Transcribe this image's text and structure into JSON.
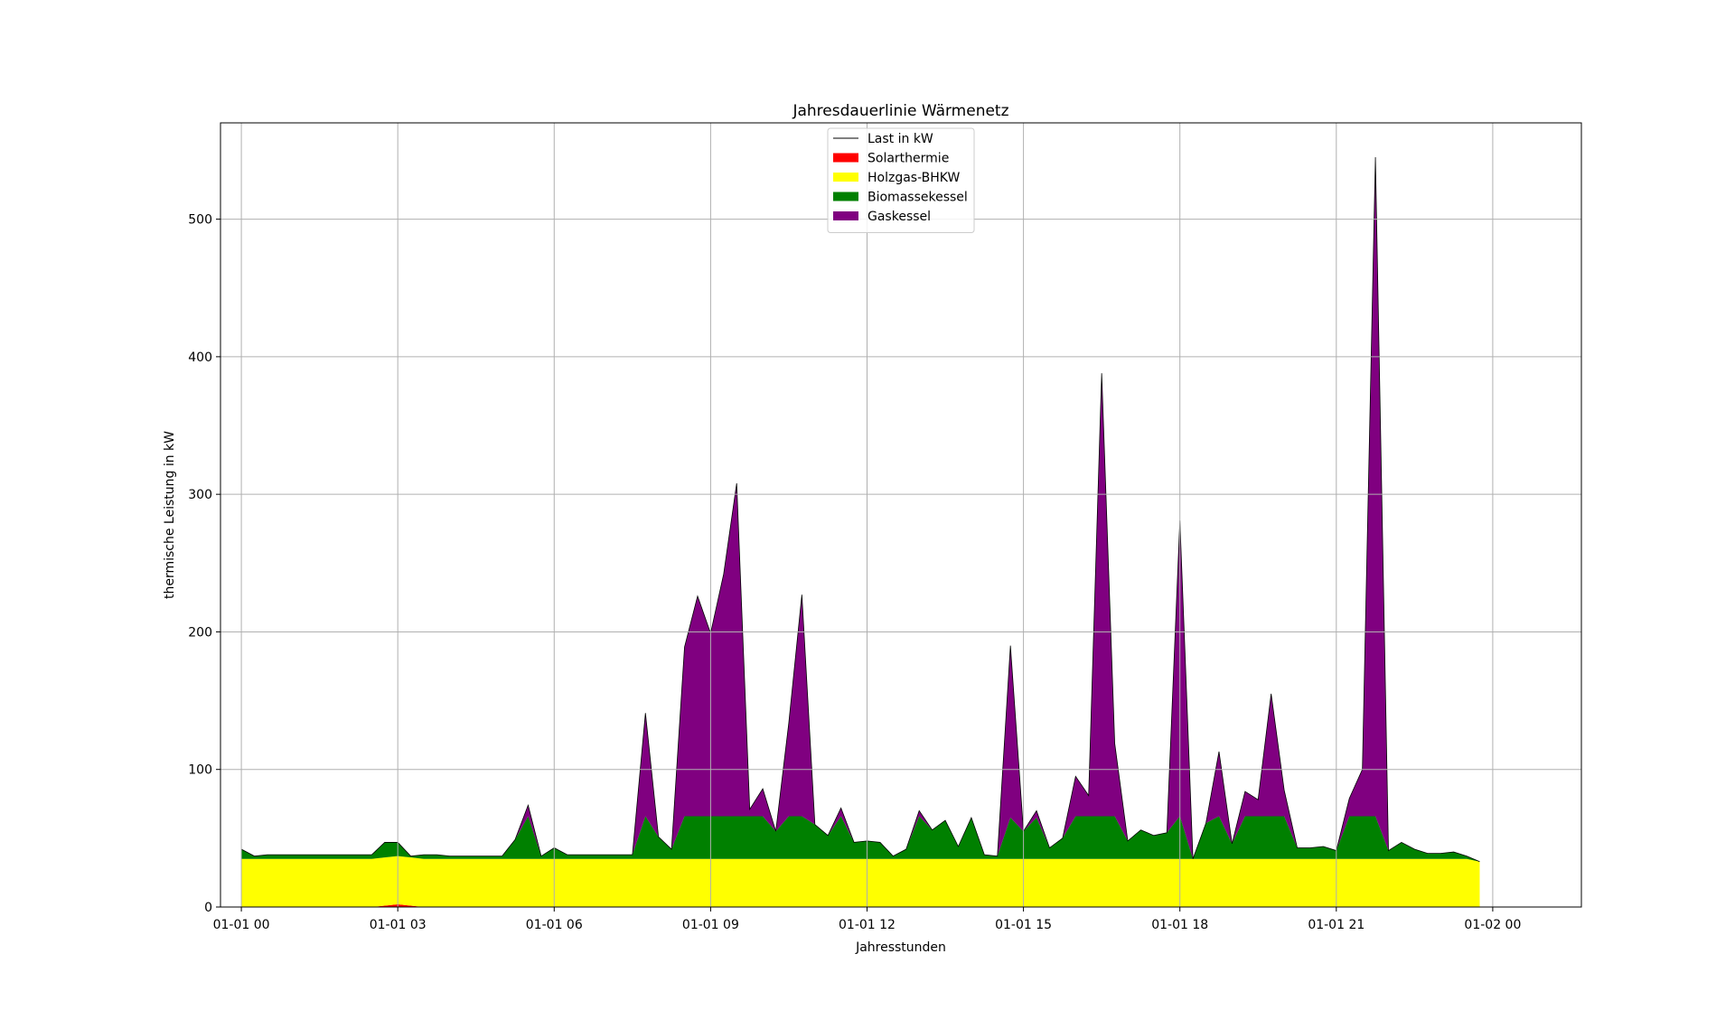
{
  "chart_data": {
    "type": "area",
    "stacked": true,
    "title": "Jahresdauerlinie Wärmenetz",
    "xlabel": "Jahresstunden",
    "ylabel": "thermische Leistung in kW",
    "x_unit": "hours",
    "xlim": [
      -0.4,
      25.7
    ],
    "ylim": [
      0,
      570
    ],
    "x_ticks": [
      {
        "x": 0,
        "label": "01-01 00"
      },
      {
        "x": 3,
        "label": "01-01 03"
      },
      {
        "x": 6,
        "label": "01-01 06"
      },
      {
        "x": 9,
        "label": "01-01 09"
      },
      {
        "x": 12,
        "label": "01-01 12"
      },
      {
        "x": 15,
        "label": "01-01 15"
      },
      {
        "x": 18,
        "label": "01-01 18"
      },
      {
        "x": 21,
        "label": "01-01 21"
      },
      {
        "x": 24,
        "label": "01-02 00"
      }
    ],
    "y_ticks": [
      0,
      100,
      200,
      300,
      400,
      500
    ],
    "grid": true,
    "legend_position": "top-center",
    "x": [
      0.0,
      0.25,
      0.5,
      0.75,
      1.0,
      1.25,
      1.5,
      1.75,
      2.0,
      2.25,
      2.5,
      2.75,
      3.0,
      3.25,
      3.5,
      3.75,
      4.0,
      4.25,
      4.5,
      4.75,
      5.0,
      5.25,
      5.5,
      5.75,
      6.0,
      6.25,
      6.5,
      6.75,
      7.0,
      7.25,
      7.5,
      7.75,
      8.0,
      8.25,
      8.5,
      8.75,
      9.0,
      9.25,
      9.5,
      9.75,
      10.0,
      10.25,
      10.5,
      10.75,
      11.0,
      11.25,
      11.5,
      11.75,
      12.0,
      12.25,
      12.5,
      12.75,
      13.0,
      13.25,
      13.5,
      13.75,
      14.0,
      14.25,
      14.5,
      14.75,
      15.0,
      15.25,
      15.5,
      15.75,
      16.0,
      16.25,
      16.5,
      16.75,
      17.0,
      17.25,
      17.5,
      17.75,
      18.0,
      18.25,
      18.5,
      18.75,
      19.0,
      19.25,
      19.5,
      19.75,
      20.0,
      20.25,
      20.5,
      20.75,
      21.0,
      21.25,
      21.5,
      21.75,
      22.0,
      22.25,
      22.5,
      22.75,
      23.0,
      23.25,
      23.5,
      23.75
    ],
    "series": [
      {
        "name": "Solarthermie",
        "color": "#ff0000",
        "values": [
          0,
          0,
          0,
          0,
          0,
          0,
          0,
          0,
          0,
          0,
          0,
          1,
          2,
          1,
          0,
          0,
          0,
          0,
          0,
          0,
          0,
          0,
          0,
          0,
          0,
          0,
          0,
          0,
          0,
          0,
          0,
          0,
          0,
          0,
          0,
          0,
          0,
          0,
          0,
          0,
          0,
          0,
          0,
          0,
          0,
          0,
          0,
          0,
          0,
          0,
          0,
          0,
          0,
          0,
          0,
          0,
          0,
          0,
          0,
          0,
          0,
          0,
          0,
          0,
          0,
          0,
          0,
          0,
          0,
          0,
          0,
          0,
          0,
          0,
          0,
          0,
          0,
          0,
          0,
          0,
          0,
          0,
          0,
          0,
          0,
          0,
          0,
          0,
          0,
          0,
          0,
          0,
          0,
          0,
          0,
          0
        ]
      },
      {
        "name": "Holzgas-BHKW",
        "color": "#ffff00",
        "values": [
          35,
          35,
          35,
          35,
          35,
          35,
          35,
          35,
          35,
          35,
          35,
          35,
          35,
          35,
          35,
          35,
          35,
          35,
          35,
          35,
          35,
          35,
          35,
          35,
          35,
          35,
          35,
          35,
          35,
          35,
          35,
          35,
          35,
          35,
          35,
          35,
          35,
          35,
          35,
          35,
          35,
          35,
          35,
          35,
          35,
          35,
          35,
          35,
          35,
          35,
          35,
          35,
          35,
          35,
          35,
          35,
          35,
          35,
          35,
          35,
          35,
          35,
          35,
          35,
          35,
          35,
          35,
          35,
          35,
          35,
          35,
          35,
          35,
          35,
          35,
          35,
          35,
          35,
          35,
          35,
          35,
          35,
          35,
          35,
          35,
          35,
          35,
          35,
          35,
          35,
          35,
          35,
          35,
          35,
          35,
          33
        ]
      },
      {
        "name": "Biomassekessel",
        "color": "#008000",
        "values": [
          7,
          2,
          3,
          3,
          3,
          3,
          3,
          3,
          3,
          3,
          3,
          11,
          10,
          1,
          3,
          3,
          2,
          2,
          2,
          2,
          2,
          14,
          31,
          2,
          8,
          3,
          3,
          3,
          3,
          3,
          3,
          31,
          16,
          7,
          31,
          31,
          31,
          31,
          31,
          31,
          31,
          20,
          31,
          31,
          25,
          17,
          31,
          12,
          13,
          12,
          2,
          7,
          31,
          21,
          28,
          9,
          30,
          3,
          2,
          30,
          20,
          30,
          8,
          15,
          31,
          31,
          31,
          31,
          13,
          21,
          17,
          19,
          31,
          0,
          26,
          31,
          11,
          31,
          31,
          31,
          31,
          8,
          8,
          9,
          6,
          31,
          31,
          31,
          6,
          12,
          7,
          4,
          4,
          5,
          2,
          0
        ]
      },
      {
        "name": "Gaskessel",
        "color": "#800080",
        "values": [
          0,
          0,
          0,
          0,
          0,
          0,
          0,
          0,
          0,
          0,
          0,
          0,
          0,
          0,
          0,
          0,
          0,
          0,
          0,
          0,
          0,
          0,
          8,
          0,
          0,
          0,
          0,
          0,
          0,
          0,
          0,
          75,
          0,
          0,
          123,
          160,
          133,
          176,
          242,
          5,
          20,
          0,
          68,
          161,
          0,
          0,
          6,
          0,
          0,
          0,
          0,
          0,
          4,
          0,
          0,
          0,
          0,
          0,
          0,
          125,
          0,
          5,
          0,
          0,
          29,
          15,
          322,
          53,
          0,
          0,
          0,
          0,
          215,
          0,
          0,
          47,
          0,
          18,
          12,
          89,
          19,
          0,
          0,
          0,
          0,
          13,
          34,
          479,
          0,
          0,
          0,
          0,
          0,
          0,
          0,
          0
        ]
      }
    ],
    "line_series": {
      "name": "Last in kW",
      "color": "#000000"
    }
  }
}
